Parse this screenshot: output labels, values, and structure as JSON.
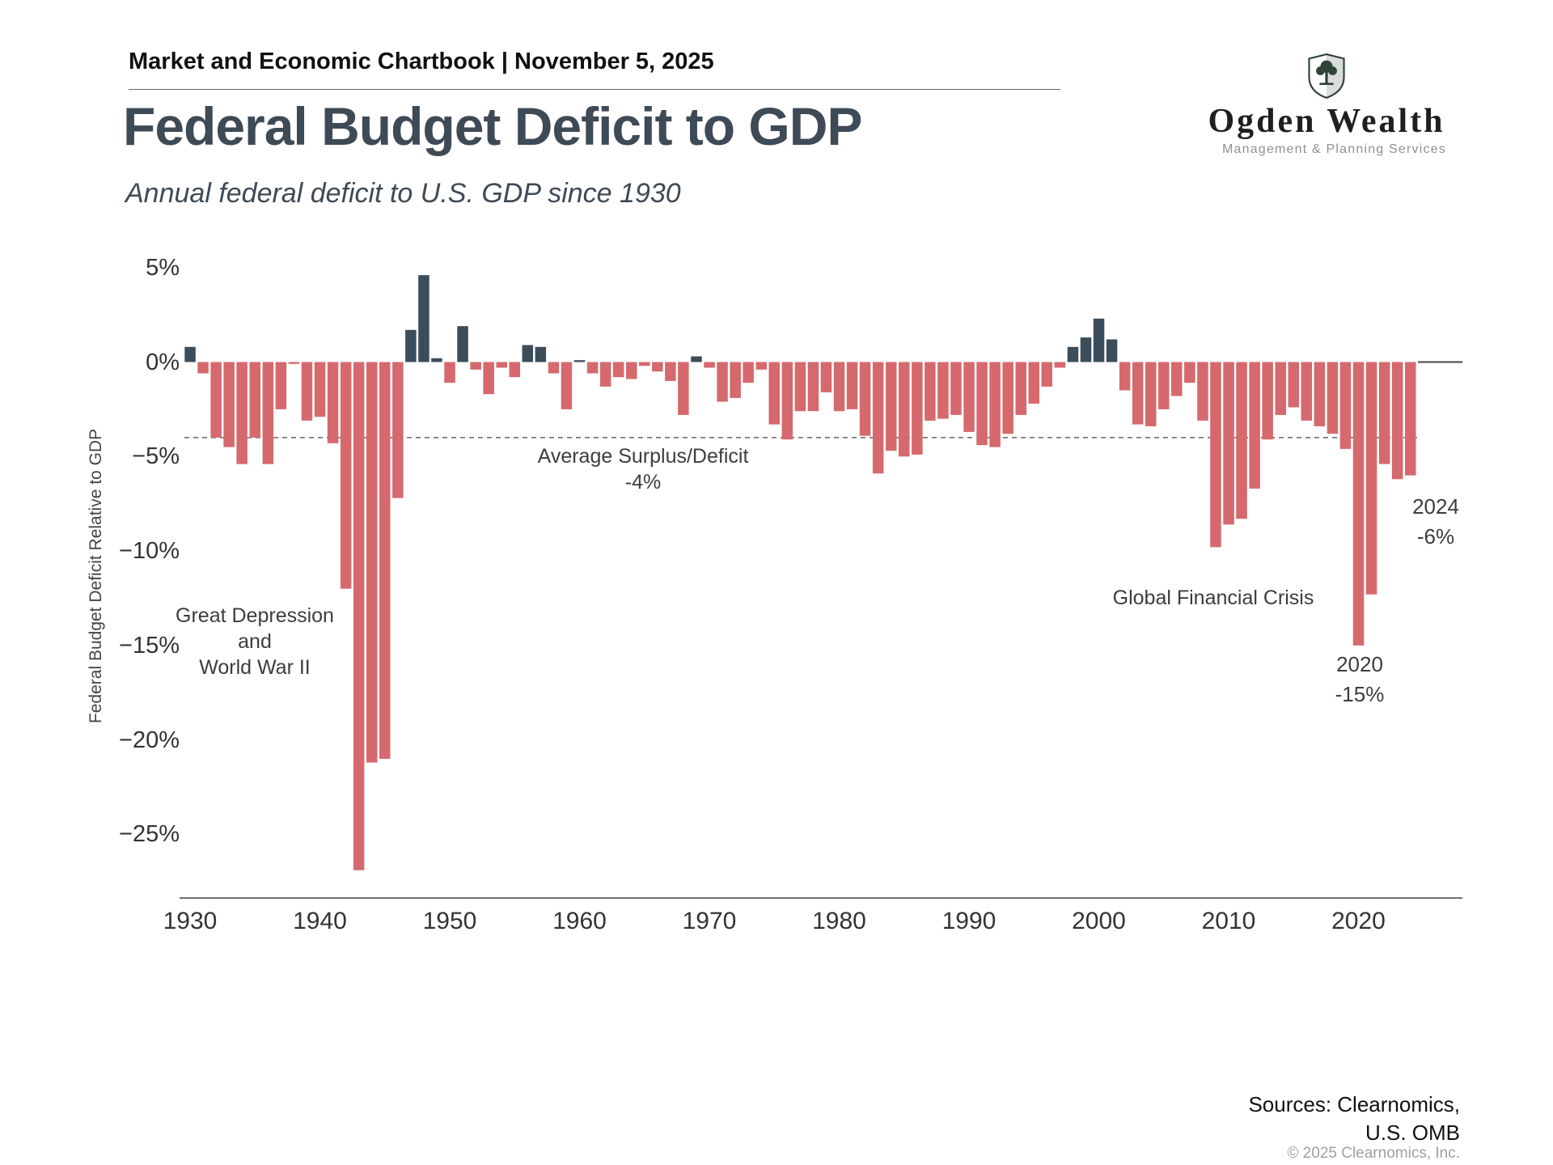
{
  "header": {
    "chartbook": "Market and Economic Chartbook | November 5, 2025",
    "title": "Federal Budget Deficit to GDP",
    "subtitle": "Annual federal deficit to U.S. GDP since 1930"
  },
  "logo": {
    "name": "Ogden Wealth",
    "tagline": "Management & Planning Services"
  },
  "chart_data": {
    "type": "bar",
    "title": "Federal Budget Deficit to GDP",
    "subtitle": "Annual federal deficit to U.S. GDP since 1930",
    "xlabel": "",
    "ylabel": "Federal Budget Deficit Relative to GDP",
    "ylim": [
      -28,
      6
    ],
    "grid": false,
    "y_ticks": [
      5,
      0,
      -5,
      -10,
      -15,
      -20,
      -25
    ],
    "x_ticks": [
      1930,
      1940,
      1950,
      1960,
      1970,
      1980,
      1990,
      2000,
      2010,
      2020
    ],
    "years": {
      "start": 1930,
      "end": 2024
    },
    "values": [
      0.8,
      -0.6,
      -4.0,
      -4.5,
      -5.4,
      -4.0,
      -5.4,
      -2.5,
      -0.1,
      -3.1,
      -2.9,
      -4.3,
      -12.0,
      -26.9,
      -21.2,
      -21.0,
      -7.2,
      1.7,
      4.6,
      0.2,
      -1.1,
      1.9,
      -0.4,
      -1.7,
      -0.3,
      -0.8,
      0.9,
      0.8,
      -0.6,
      -2.5,
      0.1,
      -0.6,
      -1.3,
      -0.8,
      -0.9,
      -0.2,
      -0.5,
      -1.0,
      -2.8,
      0.3,
      -0.3,
      -2.1,
      -1.9,
      -1.1,
      -0.4,
      -3.3,
      -4.1,
      -2.6,
      -2.6,
      -1.6,
      -2.6,
      -2.5,
      -3.9,
      -5.9,
      -4.7,
      -5.0,
      -4.9,
      -3.1,
      -3.0,
      -2.8,
      -3.7,
      -4.4,
      -4.5,
      -3.8,
      -2.8,
      -2.2,
      -1.3,
      -0.3,
      0.8,
      1.3,
      2.3,
      1.2,
      -1.5,
      -3.3,
      -3.4,
      -2.5,
      -1.8,
      -1.1,
      -3.1,
      -9.8,
      -8.6,
      -8.3,
      -6.7,
      -4.1,
      -2.8,
      -2.4,
      -3.1,
      -3.4,
      -3.8,
      -4.6,
      -15.0,
      -12.3,
      -5.4,
      -6.2,
      -6.0
    ],
    "colors": {
      "deficit": "#d5696e",
      "surplus": "#3b4d5b"
    },
    "average_line": {
      "value": -4,
      "label": [
        "Average Surplus/Deficit",
        "-4%"
      ]
    },
    "annotations": {
      "great_depression": [
        "Great Depression",
        "and",
        "World War II"
      ],
      "gfc": "Global Financial Crisis",
      "label_2020": [
        "2020",
        "-15%"
      ],
      "label_2024": [
        "2024",
        "-6%"
      ]
    }
  },
  "footer": {
    "sources_line1": "Sources: Clearnomics,",
    "sources_line2": "U.S. OMB",
    "copyright": "© 2025 Clearnomics, Inc."
  }
}
